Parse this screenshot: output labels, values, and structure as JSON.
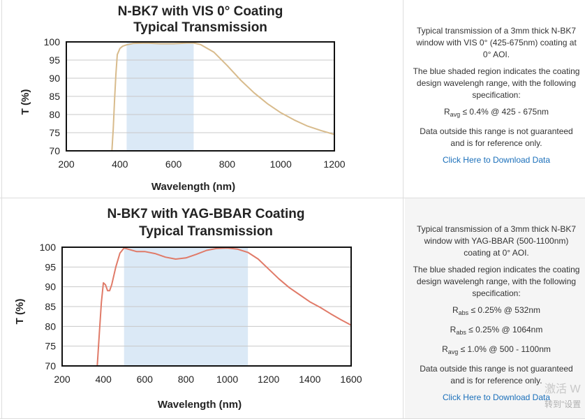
{
  "chart_data": [
    {
      "type": "line",
      "title_line1": "N-BK7 with VIS 0° Coating",
      "title_line2": "Typical Transmission",
      "xlabel": "Wavelength (nm)",
      "ylabel": "T (%)",
      "xlim": [
        200,
        1200
      ],
      "ylim": [
        70,
        100
      ],
      "xticks": [
        200,
        400,
        600,
        800,
        1000,
        1200
      ],
      "yticks": [
        70,
        75,
        80,
        85,
        90,
        95,
        100
      ],
      "grid": "horizontal",
      "line_color": "#d8bb8c",
      "shade_color": "#dbe9f6",
      "shaded_range": [
        425,
        675
      ],
      "series": [
        {
          "x": [
            370,
            375,
            380,
            385,
            390,
            400,
            410,
            425,
            450,
            500,
            550,
            600,
            650,
            675,
            700,
            750,
            800,
            850,
            900,
            950,
            1000,
            1050,
            1100,
            1150,
            1200
          ],
          "y": [
            70,
            76,
            84,
            91,
            96.5,
            98.2,
            98.8,
            99.2,
            99.6,
            99.7,
            99.5,
            99.5,
            99.7,
            99.7,
            99.3,
            97.2,
            93.5,
            89.5,
            86,
            83,
            80.5,
            78.5,
            76.8,
            75.6,
            74.5
          ]
        }
      ]
    },
    {
      "type": "line",
      "title_line1": "N-BK7 with YAG-BBAR Coating",
      "title_line2": "Typical Transmission",
      "xlabel": "Wavelength (nm)",
      "ylabel": "T (%)",
      "xlim": [
        200,
        1600
      ],
      "ylim": [
        70,
        100
      ],
      "xticks": [
        200,
        400,
        600,
        800,
        1000,
        1200,
        1400,
        1600
      ],
      "yticks": [
        70,
        75,
        80,
        85,
        90,
        95,
        100
      ],
      "grid": "horizontal",
      "line_color": "#e07a68",
      "shade_color": "#dbe9f6",
      "shaded_range": [
        500,
        1100
      ],
      "series": [
        {
          "x": [
            370,
            380,
            390,
            400,
            410,
            420,
            430,
            440,
            460,
            480,
            500,
            520,
            560,
            600,
            650,
            700,
            750,
            800,
            850,
            900,
            950,
            1000,
            1050,
            1100,
            1150,
            1200,
            1250,
            1300,
            1350,
            1400,
            1450,
            1500,
            1550,
            1600
          ],
          "y": [
            70,
            78,
            86,
            91,
            90.5,
            89,
            89,
            90.5,
            95,
            98.5,
            99.8,
            99.5,
            98.9,
            98.9,
            98.4,
            97.5,
            97,
            97.3,
            98.2,
            99.2,
            99.7,
            99.8,
            99.5,
            98.7,
            97,
            94.5,
            92,
            89.8,
            88,
            86.2,
            84.8,
            83.2,
            81.7,
            80.3
          ]
        }
      ]
    }
  ],
  "info1": {
    "desc": "Typical transmission of a 3mm thick N-BK7 window with VIS 0° (425-675nm) coating at 0° AOI.",
    "shade_note": "The blue shaded region indicates the coating design wavelengh range, with the following specification:",
    "spec1_sym": "R",
    "spec1_sub": "avg",
    "spec1_text": " ≤ 0.4% @ 425 - 675nm",
    "disclaimer": "Data outside this range is not guaranteed and is for reference only.",
    "link": "Click Here to Download Data"
  },
  "info2": {
    "desc": "Typical transmission of a 3mm thick N-BK7 window with YAG-BBAR (500-1100nm) coating at 0° AOI.",
    "shade_note": "The blue shaded region indicates the coating design wavelengh range, with the following specification:",
    "spec1_sym": "R",
    "spec1_sub": "abs",
    "spec1_text": " ≤ 0.25% @ 532nm",
    "spec2_sym": "R",
    "spec2_sub": "abs",
    "spec2_text": " ≤ 0.25% @ 1064nm",
    "spec3_sym": "R",
    "spec3_sub": "avg",
    "spec3_text": " ≤ 1.0% @ 500 - 1100nm",
    "disclaimer": "Data outside this range is not guaranteed and is for reference only.",
    "link": "Click Here to Download Data"
  },
  "watermark": {
    "line1": "激活 W",
    "line2": "转到\"设置"
  }
}
